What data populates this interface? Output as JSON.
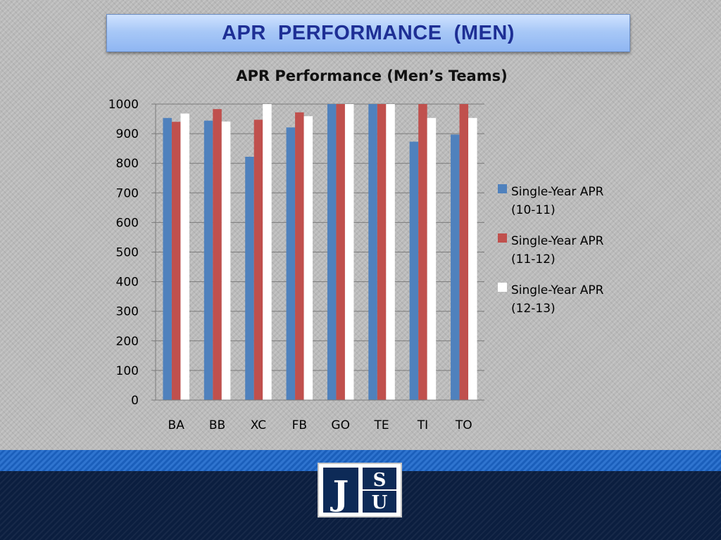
{
  "slide": {
    "title": "APR  PERFORMANCE  (MEN)"
  },
  "logo": {
    "letters": [
      "J",
      "S",
      "U"
    ]
  },
  "colors": {
    "series_1": "#4f81bd",
    "series_2": "#c0504d",
    "series_3": "#ffffff",
    "title_text": "#1e2f95",
    "footer_navy": "#0b1e3f",
    "footer_blue": "#2f74cf"
  },
  "chart_data": {
    "type": "bar",
    "title": "APR Performance (Men’s Teams)",
    "xlabel": "",
    "ylabel": "",
    "categories": [
      "BA",
      "BB",
      "XC",
      "FB",
      "GO",
      "TE",
      "TI",
      "TO"
    ],
    "ylim": [
      0,
      1000
    ],
    "yticks": [
      0,
      100,
      200,
      300,
      400,
      500,
      600,
      700,
      800,
      900,
      1000
    ],
    "grid": true,
    "legend_position": "right",
    "series": [
      {
        "name": "Single-Year APR (10-11)",
        "legend_lines": [
          "Single-Year APR",
          "(10-11)"
        ],
        "color": "#4f81bd",
        "values": [
          953,
          944,
          822,
          921,
          1000,
          1000,
          873,
          897
        ]
      },
      {
        "name": "Single-Year APR (11-12)",
        "legend_lines": [
          "Single-Year APR",
          "(11-12)"
        ],
        "color": "#c0504d",
        "values": [
          940,
          983,
          947,
          972,
          1000,
          1000,
          1000,
          1000
        ]
      },
      {
        "name": "Single-Year APR (12-13)",
        "legend_lines": [
          "Single-Year APR",
          "(12-13)"
        ],
        "color": "#ffffff",
        "values": [
          968,
          941,
          1000,
          959,
          1000,
          1000,
          953,
          953
        ]
      }
    ]
  }
}
